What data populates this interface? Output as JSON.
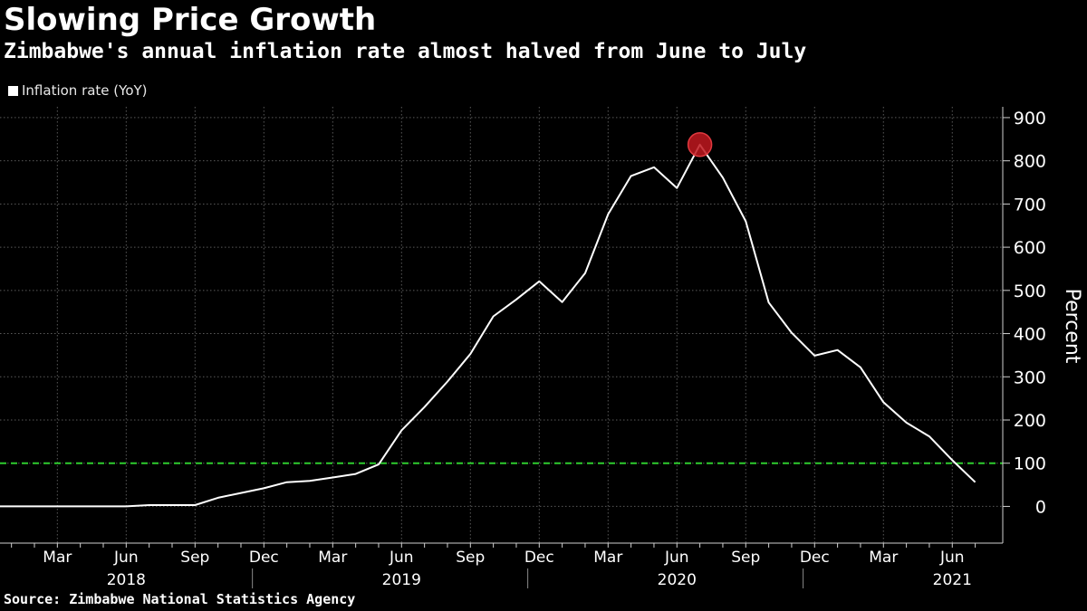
{
  "chart_data": {
    "type": "line",
    "title": "Slowing Price Growth",
    "subtitle": "Zimbabwe's annual inflation rate almost halved from June to July",
    "source": "Source: Zimbabwe National Statistics Agency",
    "ylabel": "Percent",
    "xlabel": "",
    "ylim": [
      -85,
      925
    ],
    "yticks": [
      0,
      100,
      200,
      300,
      400,
      500,
      600,
      700,
      800,
      900
    ],
    "ytick_labels": [
      "0",
      "100",
      "200",
      "300",
      "400",
      "500",
      "600",
      "700",
      "800",
      "900"
    ],
    "grid": true,
    "legend_position": "top-left",
    "x_range_months": [
      -0.5,
      43.2
    ],
    "x_month_ticks": [
      {
        "m": 2,
        "label": "Mar"
      },
      {
        "m": 5,
        "label": "Jun"
      },
      {
        "m": 8,
        "label": "Sep"
      },
      {
        "m": 11,
        "label": "Dec"
      },
      {
        "m": 14,
        "label": "Mar"
      },
      {
        "m": 17,
        "label": "Jun"
      },
      {
        "m": 20,
        "label": "Sep"
      },
      {
        "m": 23,
        "label": "Dec"
      },
      {
        "m": 26,
        "label": "Mar"
      },
      {
        "m": 29,
        "label": "Jun"
      },
      {
        "m": 32,
        "label": "Sep"
      },
      {
        "m": 35,
        "label": "Dec"
      },
      {
        "m": 38,
        "label": "Mar"
      },
      {
        "m": 41,
        "label": "Jun"
      }
    ],
    "x_year_labels": [
      {
        "m": 5,
        "label": "2018"
      },
      {
        "m": 17,
        "label": "2019"
      },
      {
        "m": 29,
        "label": "2020"
      },
      {
        "m": 41,
        "label": "2021"
      }
    ],
    "year_dividers": [
      10.5,
      22.5,
      34.5
    ],
    "reference_line": {
      "value": 100,
      "color": "#2ecc2e",
      "style": "dashed"
    },
    "highlight": {
      "month": 30,
      "value": 837.5,
      "color": "#c0181f"
    },
    "line_color": "#ffffff",
    "series": [
      {
        "name": "Inflation rate (YoY)",
        "x_months": [
          -0.5,
          0,
          1,
          2,
          3,
          4,
          5,
          6,
          7,
          8,
          9,
          10,
          11,
          12,
          13,
          14,
          15,
          16,
          17,
          18,
          19,
          20,
          21,
          22,
          23,
          24,
          25,
          26,
          27,
          28,
          29,
          30,
          31,
          32,
          33,
          34,
          35,
          36,
          37,
          38,
          39,
          40,
          41,
          42
        ],
        "values": [
          0,
          0,
          0,
          0,
          0,
          0,
          0,
          3,
          3,
          3,
          20,
          31,
          42,
          56,
          59,
          67,
          75,
          97,
          176,
          230,
          289,
          353,
          440,
          479,
          521,
          473,
          540,
          676,
          765,
          785,
          737,
          837.5,
          761,
          660,
          472,
          402,
          349,
          362,
          322,
          241,
          194,
          162,
          107,
          56
        ]
      }
    ]
  }
}
